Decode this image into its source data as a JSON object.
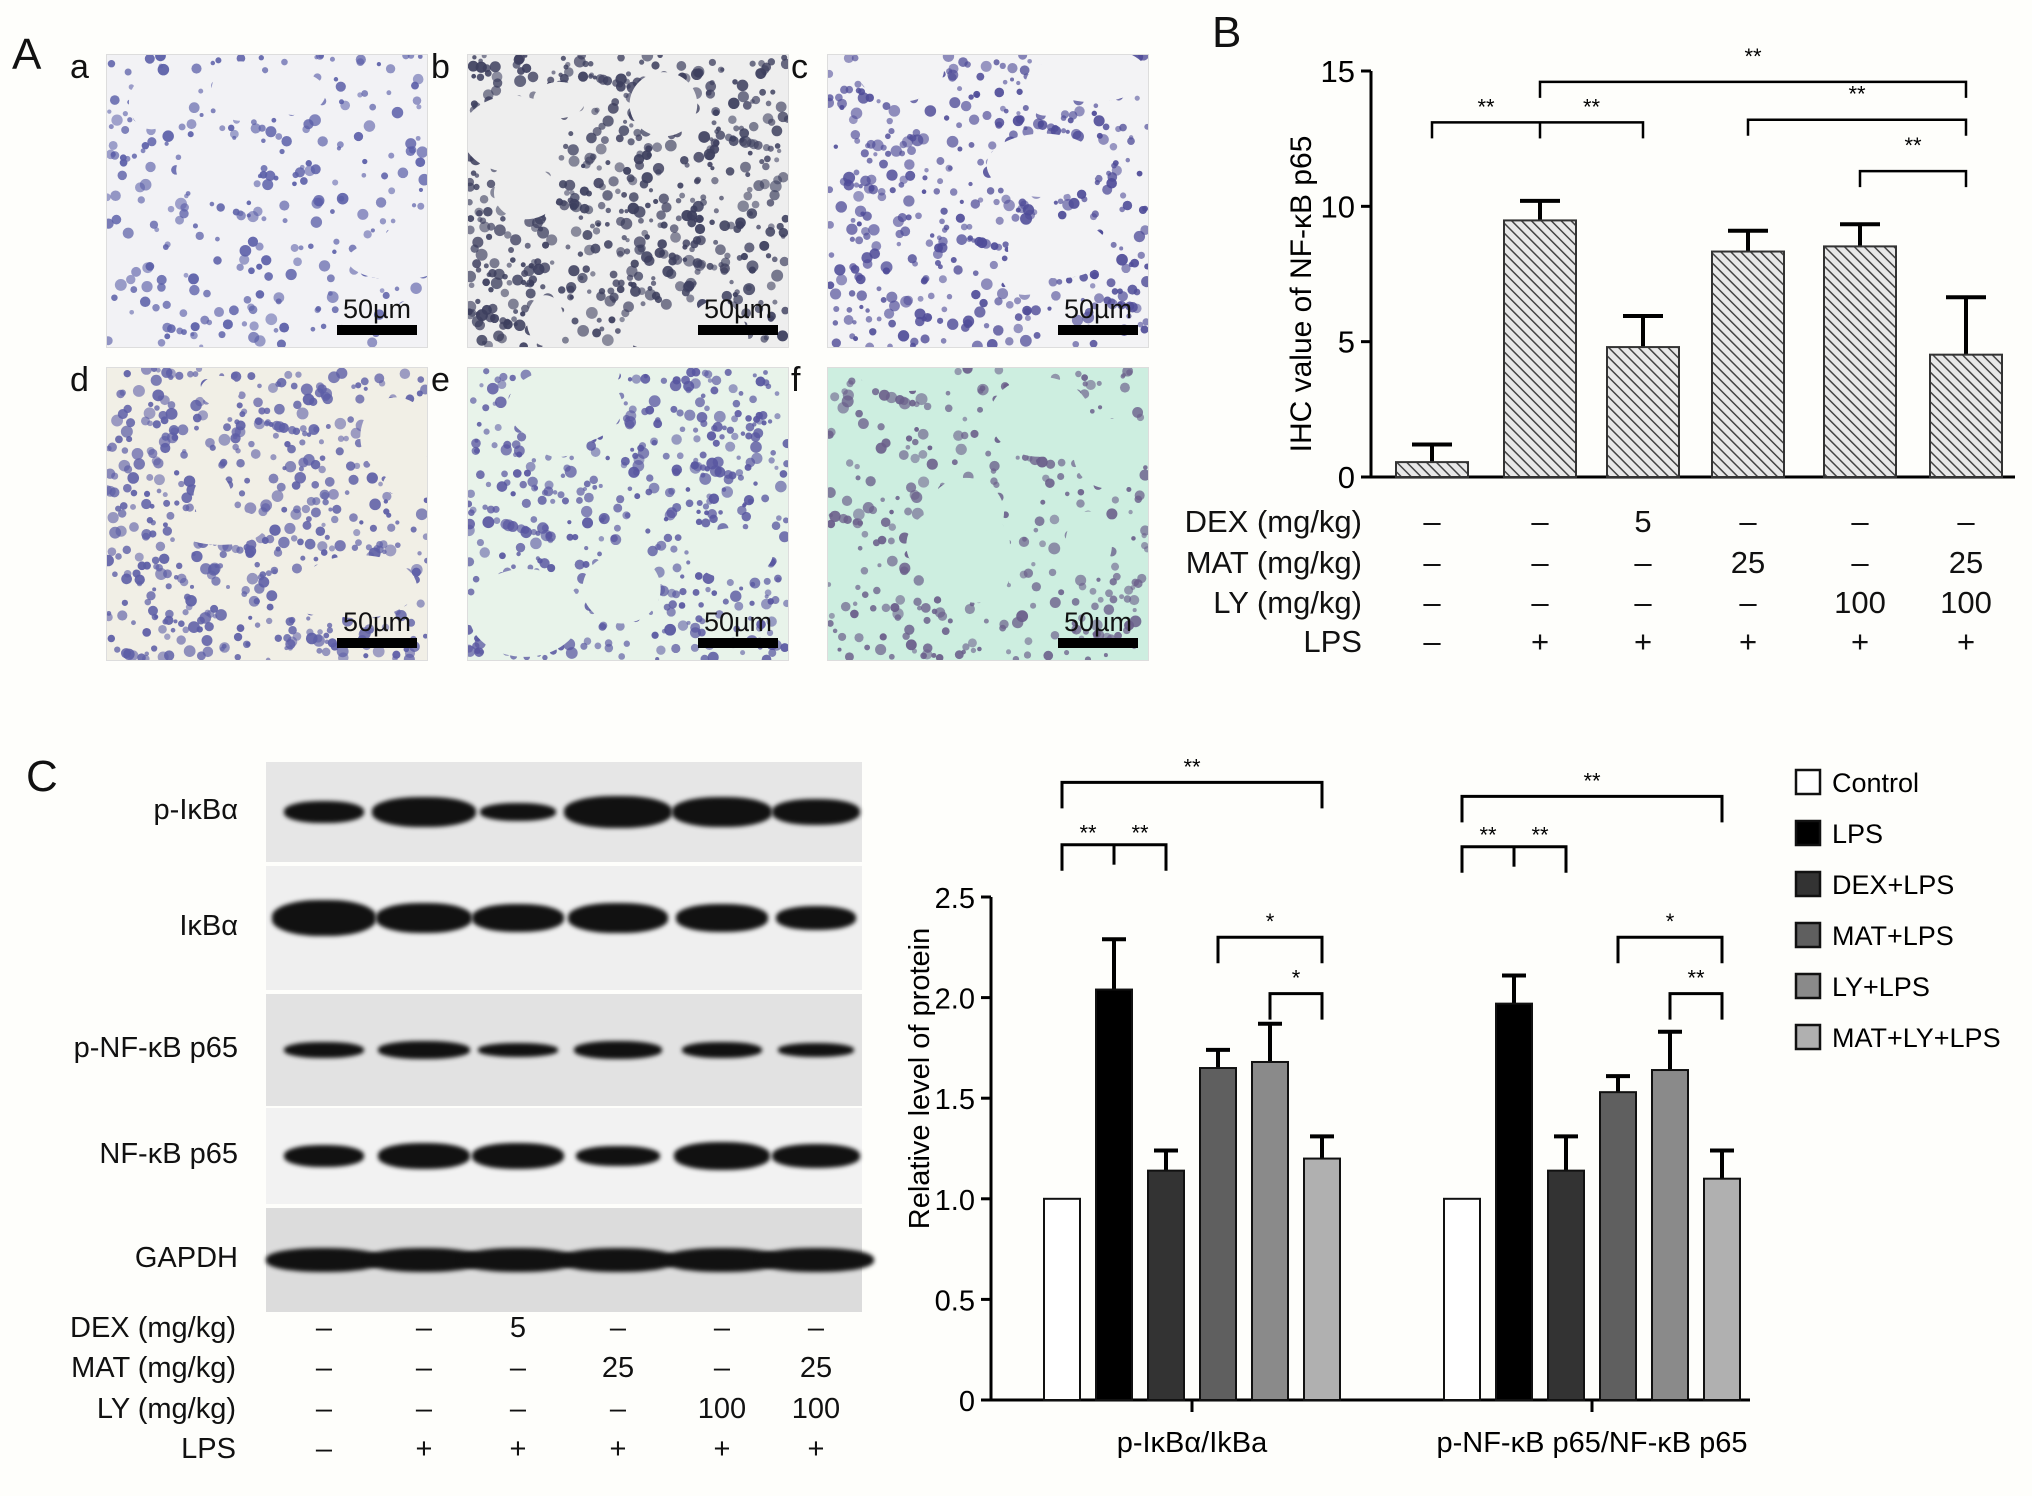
{
  "panel_a": {
    "label": "A",
    "images": [
      {
        "sub": "a",
        "scale": "50µm",
        "bg": "#f2f2f5",
        "tissue": "#5b5fa8"
      },
      {
        "sub": "b",
        "scale": "50µm",
        "bg": "#eeeeee",
        "tissue": "#3d3f5e"
      },
      {
        "sub": "c",
        "scale": "50µm",
        "bg": "#f3f3f5",
        "tissue": "#4f4c98"
      },
      {
        "sub": "d",
        "scale": "50µm",
        "bg": "#f1efe6",
        "tissue": "#5d5ea6"
      },
      {
        "sub": "e",
        "scale": "50µm",
        "bg": "#e8f3ea",
        "tissue": "#5856a0"
      },
      {
        "sub": "f",
        "scale": "50µm",
        "bg": "#cdeee0",
        "tissue": "#6a5e8a"
      }
    ]
  },
  "panel_b": {
    "label": "B"
  },
  "panel_c": {
    "label": "C",
    "blot_rows": [
      "p-IκBα",
      "IκBα",
      "p-NF-κB p65",
      "NF-κB p65",
      "GAPDH"
    ]
  },
  "conditions": {
    "rows": [
      {
        "label": "DEX (mg/kg)",
        "values": [
          "–",
          "–",
          "5",
          "–",
          "–",
          "–"
        ]
      },
      {
        "label": "MAT (mg/kg)",
        "values": [
          "–",
          "–",
          "–",
          "25",
          "–",
          "25"
        ]
      },
      {
        "label": "LY (mg/kg)",
        "values": [
          "–",
          "–",
          "–",
          "–",
          "100",
          "100"
        ]
      },
      {
        "label": "LPS",
        "values": [
          "–",
          "+",
          "+",
          "+",
          "+",
          "+"
        ]
      }
    ]
  },
  "chart_data": [
    {
      "type": "bar",
      "title": "",
      "ylabel": "IHC value of NF-κB p65",
      "xlabel": "",
      "ylim": [
        0,
        15
      ],
      "yticks": [
        0,
        5,
        10,
        15
      ],
      "categories": [
        "Control",
        "LPS",
        "DEX+LPS",
        "MAT+LPS",
        "LY+LPS",
        "MAT+LY+LPS"
      ],
      "values": [
        0.55,
        9.48,
        4.8,
        8.33,
        8.52,
        4.52
      ],
      "errors": [
        0.65,
        0.72,
        1.15,
        0.77,
        0.82,
        2.12
      ],
      "pattern": "diagonal-hatch",
      "significance": [
        {
          "from": 0,
          "to": 2,
          "mid": 1,
          "label": "**",
          "y": 13.1
        },
        {
          "from": 1,
          "to": 5,
          "label": "**",
          "y": 14.6
        },
        {
          "from": 3,
          "to": 5,
          "label": "**",
          "y": 13.2
        },
        {
          "from": 4,
          "to": 5,
          "label": "**",
          "y": 11.3
        }
      ],
      "grid": false
    },
    {
      "type": "bar",
      "title": "",
      "ylabel": "Relative level of protein",
      "xlabel": "",
      "ylim": [
        0,
        2.5
      ],
      "yticks": [
        "0",
        "0.5",
        "1.0",
        "1.5",
        "2.0",
        "2.5"
      ],
      "categories": [
        "p-IκBα/IkBa",
        "p-NF-κB p65/NF-κB p65"
      ],
      "series": [
        {
          "name": "Control",
          "color": "#ffffff",
          "values": [
            1.0,
            1.0
          ],
          "errors": [
            0,
            0
          ]
        },
        {
          "name": "LPS",
          "color": "#000000",
          "values": [
            2.04,
            1.97
          ],
          "errors": [
            0.25,
            0.14
          ]
        },
        {
          "name": "DEX+LPS",
          "color": "#333333",
          "values": [
            1.14,
            1.14
          ],
          "errors": [
            0.1,
            0.17
          ]
        },
        {
          "name": "MAT+LPS",
          "color": "#5f5f5f",
          "values": [
            1.65,
            1.53
          ],
          "errors": [
            0.09,
            0.08
          ]
        },
        {
          "name": "LY+LPS",
          "color": "#8a8a8a",
          "values": [
            1.68,
            1.64
          ],
          "errors": [
            0.19,
            0.19
          ]
        },
        {
          "name": "MAT+LY+LPS",
          "color": "#b0b0b0",
          "values": [
            1.2,
            1.1
          ],
          "errors": [
            0.11,
            0.14
          ]
        }
      ],
      "significance": [
        {
          "group": 0,
          "from": 0,
          "to": 5,
          "label": "**",
          "y": 3.07
        },
        {
          "group": 0,
          "from": 0,
          "to": 2,
          "mid": 1,
          "label": "**",
          "y": 2.76
        },
        {
          "group": 0,
          "from": 3,
          "to": 5,
          "label": "*",
          "y": 2.3
        },
        {
          "group": 0,
          "from": 4,
          "to": 5,
          "label": "*",
          "y": 2.02
        },
        {
          "group": 1,
          "from": 0,
          "to": 5,
          "label": "**",
          "y": 3.0
        },
        {
          "group": 1,
          "from": 0,
          "to": 2,
          "mid": 1,
          "label": "**",
          "y": 2.75
        },
        {
          "group": 1,
          "from": 3,
          "to": 5,
          "label": "*",
          "y": 2.3
        },
        {
          "group": 1,
          "from": 4,
          "to": 5,
          "label": "**",
          "y": 2.02
        }
      ],
      "legend_position": "right",
      "grid": false
    }
  ]
}
